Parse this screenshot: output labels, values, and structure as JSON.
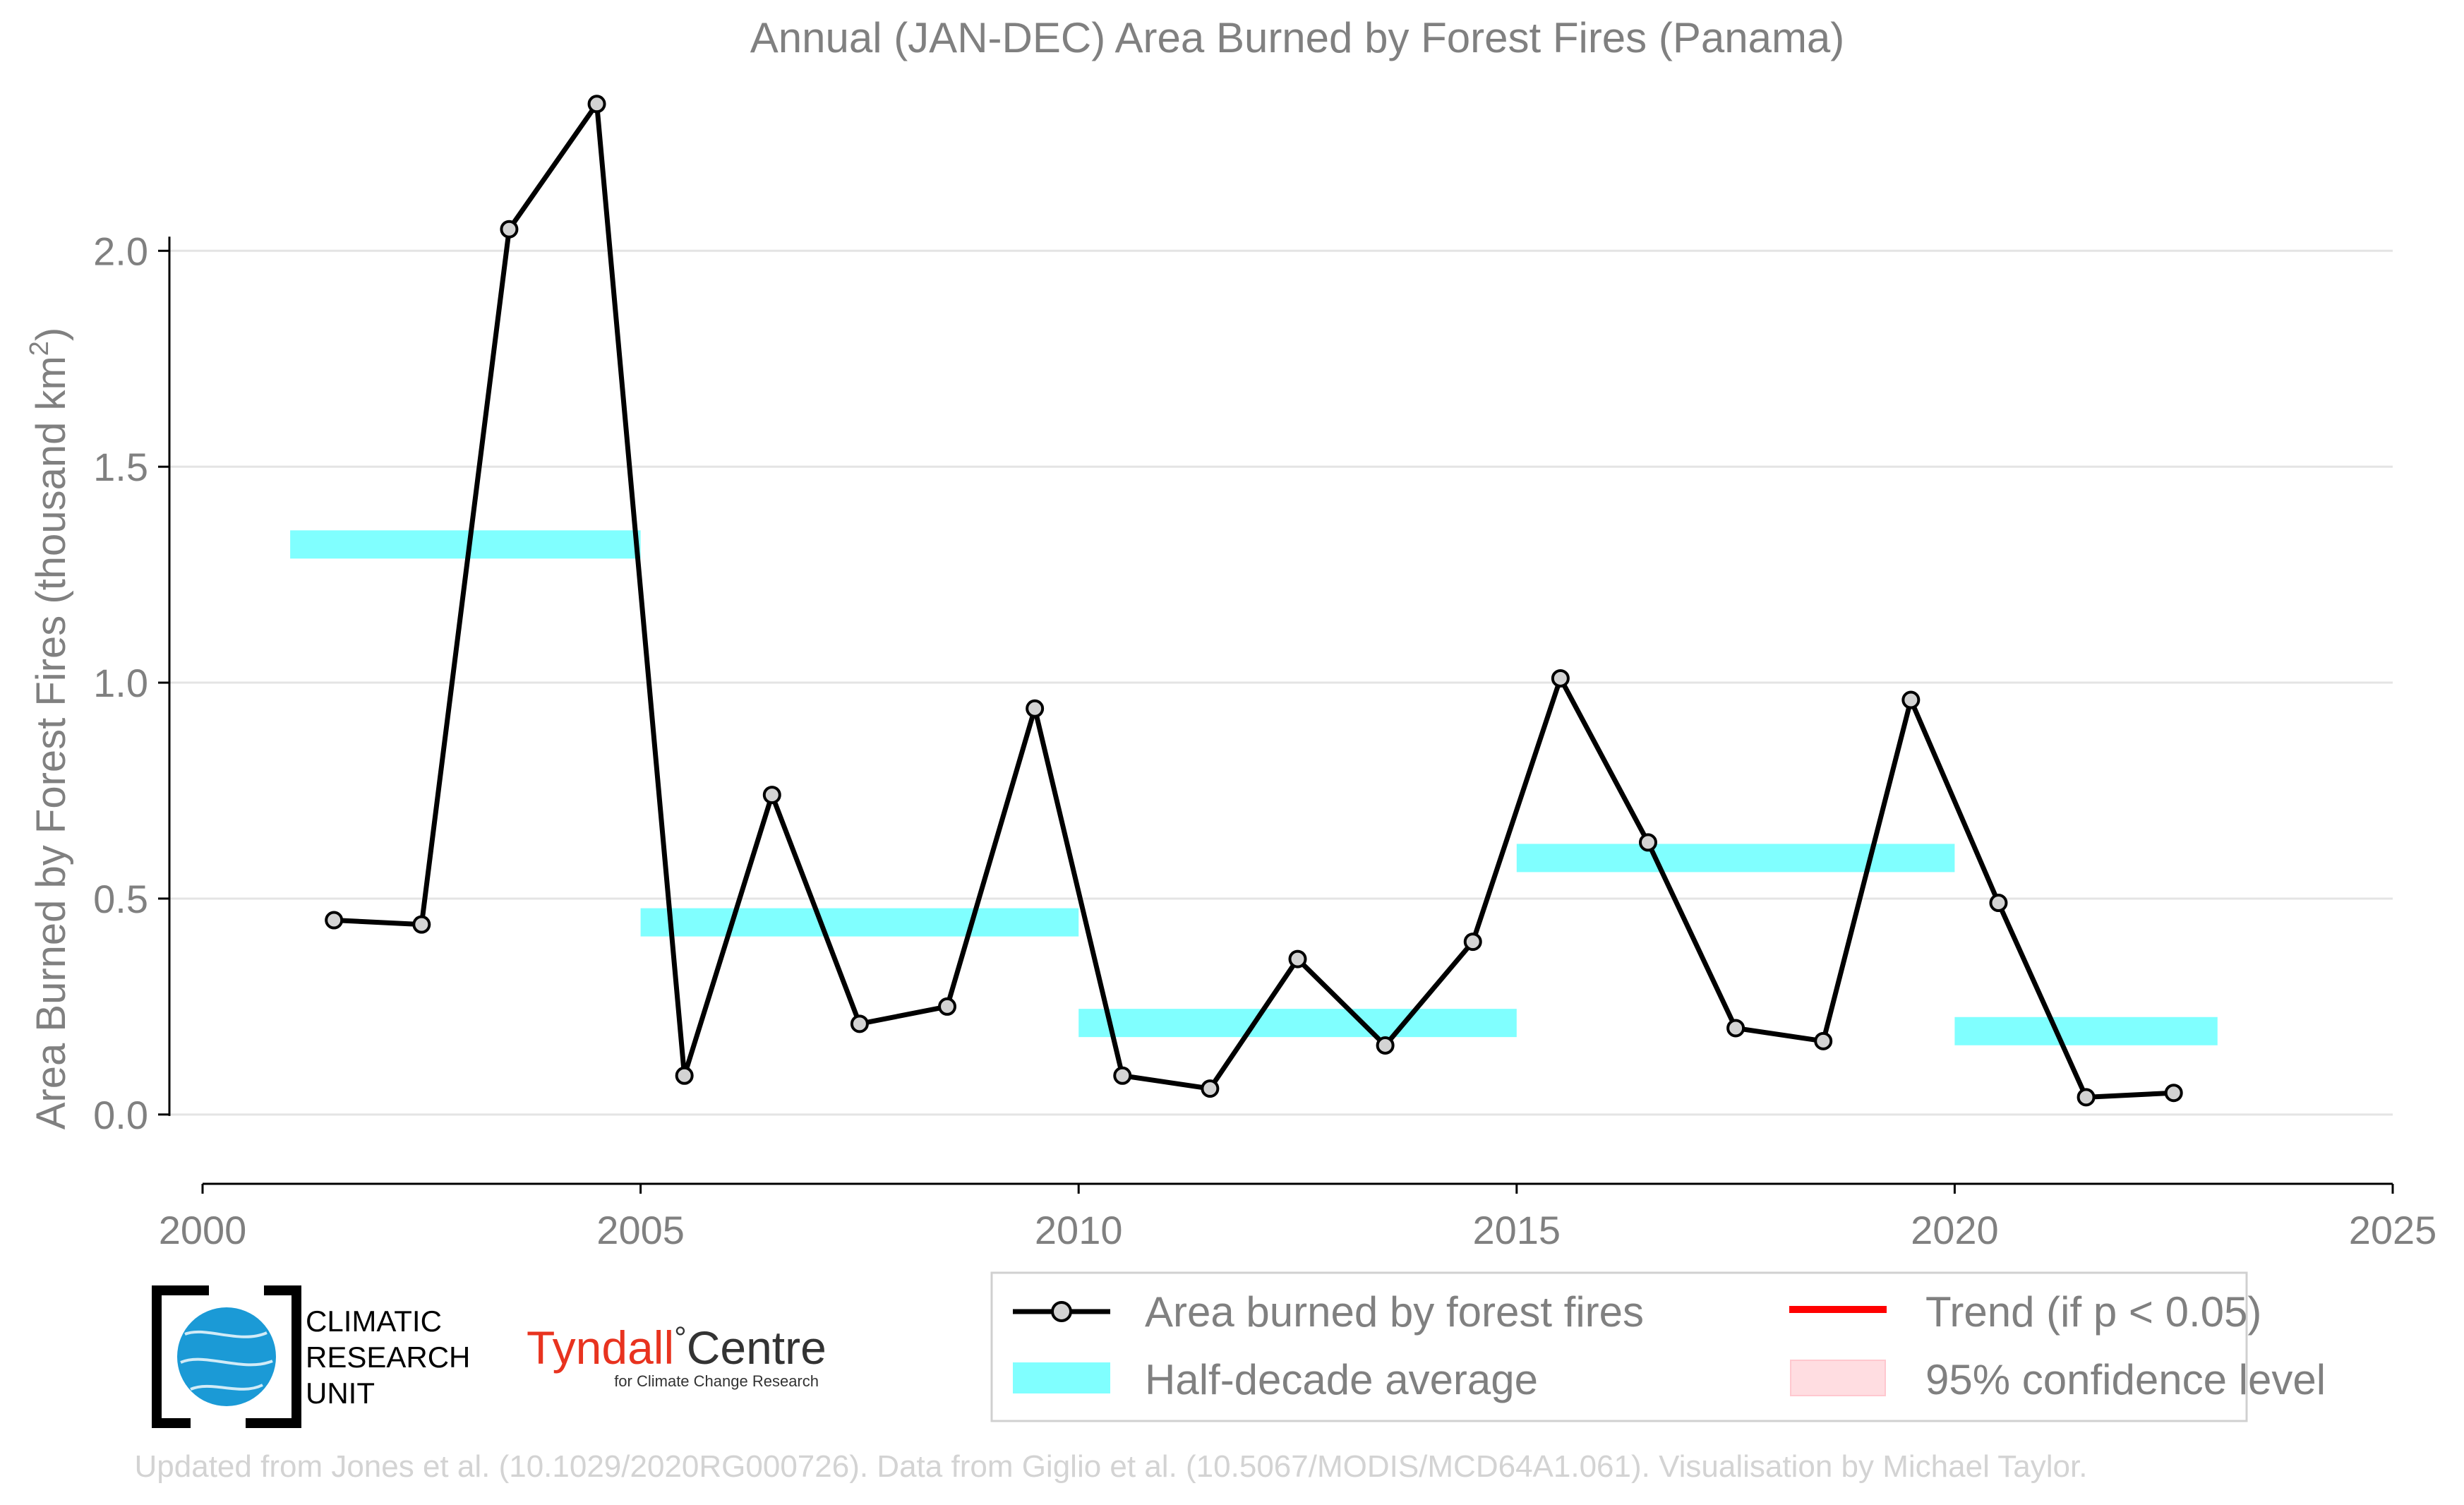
{
  "chart_data": {
    "type": "line",
    "title": "Annual (JAN-DEC) Area Burned by Forest Fires (Panama)",
    "ylabel": "Area Burned by Forest Fires (thousand km²)",
    "ylabel_main": "Area Burned by Forest Fires (thousand km",
    "ylabel_sup": "2",
    "ylabel_end": ")",
    "xlabel": "",
    "xlim": [
      2000,
      2025
    ],
    "ylim": [
      -0.1,
      2.45
    ],
    "xticks": [
      2000,
      2005,
      2010,
      2015,
      2020,
      2025
    ],
    "xtick_labels": [
      "2000",
      "2005",
      "2010",
      "2015",
      "2020",
      "2025"
    ],
    "yticks": [
      0.0,
      0.5,
      1.0,
      1.5,
      2.0
    ],
    "ytick_labels": [
      "0.0",
      "0.5",
      "1.0",
      "1.5",
      "2.0"
    ],
    "grid": "horizontal",
    "series": [
      {
        "name": "Area burned by forest fires",
        "color": "#000000",
        "marker_fill": "#d3d3d3",
        "x": [
          2001.5,
          2002.5,
          2003.5,
          2004.5,
          2005.5,
          2006.5,
          2007.5,
          2008.5,
          2009.5,
          2010.5,
          2011.5,
          2012.5,
          2013.5,
          2014.5,
          2015.5,
          2016.5,
          2017.5,
          2018.5,
          2019.5,
          2020.5,
          2021.5,
          2022.5
        ],
        "values": [
          0.45,
          0.44,
          2.05,
          2.34,
          0.09,
          0.74,
          0.21,
          0.25,
          0.94,
          0.09,
          0.06,
          0.36,
          0.16,
          0.4,
          1.01,
          0.63,
          0.2,
          0.17,
          0.96,
          0.49,
          0.04,
          0.05
        ]
      }
    ],
    "half_decade_average": {
      "name": "Half-decade average",
      "color": "#80ffff",
      "segments": [
        {
          "x_start": 2001,
          "x_end": 2005,
          "value": 1.32
        },
        {
          "x_start": 2005,
          "x_end": 2010,
          "value": 0.445
        },
        {
          "x_start": 2010,
          "x_end": 2015,
          "value": 0.212
        },
        {
          "x_start": 2015,
          "x_end": 2020,
          "value": 0.594
        },
        {
          "x_start": 2020,
          "x_end": 2023,
          "value": 0.193
        }
      ]
    },
    "legend": {
      "placement": "bottom-right",
      "entries": [
        {
          "label": "Area burned by forest fires",
          "kind": "line-marker",
          "color": "#000000"
        },
        {
          "label": "Trend (if p < 0.05)",
          "kind": "line",
          "color": "#ff0000"
        },
        {
          "label": "Half-decade average",
          "kind": "band",
          "color": "#80ffff"
        },
        {
          "label": "95% confidence level",
          "kind": "patch",
          "color": "#ffdde1"
        }
      ]
    }
  },
  "logos": {
    "cru_lines": [
      "CLIMATIC",
      "RESEARCH",
      "UNIT"
    ],
    "tyndall_main": "Tyndall",
    "tyndall_degree": "°",
    "tyndall_centre": "Centre",
    "tyndall_sub": "for Climate Change Research"
  },
  "footer": "Updated from Jones et al. (10.1029/2020RG000726). Data from Giglio et al. (10.5067/MODIS/MCD64A1.061). Visualisation by Michael Taylor."
}
